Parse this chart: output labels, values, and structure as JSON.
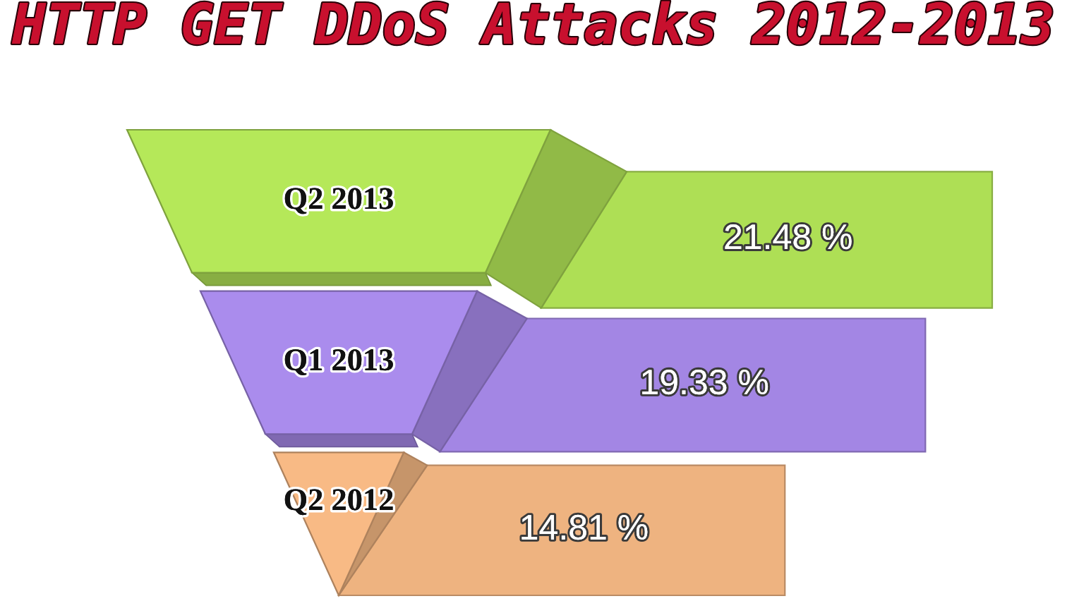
{
  "chart_data": {
    "type": "other",
    "title": "HTTP GET DDoS Attacks 2012-2013",
    "categories": [
      "Q2 2013",
      "Q1 2013",
      "Q2 2012"
    ],
    "values": [
      21.48,
      19.33,
      14.81
    ],
    "value_labels": [
      "21.48 %",
      "19.33 %",
      "14.81 %"
    ],
    "colors": [
      "#b5e859",
      "#aa8ced",
      "#f8ba85"
    ]
  }
}
